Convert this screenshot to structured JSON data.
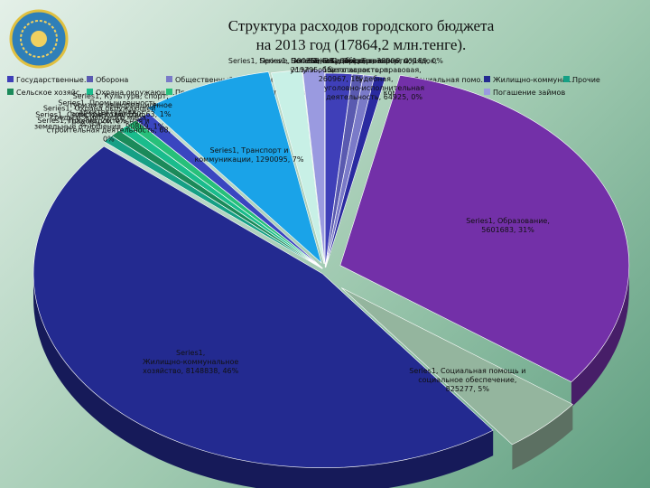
{
  "title_line1": "Структура расходов городского бюджета",
  "title_line2": "на 2013 год (17864,2 млн.тенге).",
  "chart_data": {
    "type": "pie",
    "title": "Структура расходов городского бюджета на 2013 год (17864,2 млн.тенге).",
    "legend": "top",
    "slices": [
      {
        "label": "Series1, Государственные услуги общего характера, 260967, 1%",
        "category": "Государственные услуги общего характера",
        "value": 260967,
        "percent": 1,
        "color": "#3f3fb8"
      },
      {
        "label": "Series1, Оборона, 38006, 0%",
        "category": "Оборона",
        "value": 38006,
        "percent": 0,
        "color": "#5a5ab0"
      },
      {
        "label": "Series1, Общественный порядок, безопасность, правовая, судебная, уголовно-исполнительная деятельность, 64925, 0%",
        "category": "Общественный порядок, безопасность, правовая, судебная, уголовно-исполнительная деятельность",
        "value": 64925,
        "percent": 0,
        "color": "#7a7ac8"
      },
      {
        "label": "Series1, Трансферты, 189, 0%",
        "category": "Трансферты",
        "value": 189,
        "percent": 0,
        "color": "#2a2aa0"
      },
      {
        "label": "Series1, Образование, 5601683, 31%",
        "category": "Образование",
        "value": 5601683,
        "percent": 31,
        "color": "#7330a8"
      },
      {
        "label": "Series1, Социальная помощь и социальное обеспечение, 825277, 5%",
        "category": "Социальная помощь и социальное обеспечение",
        "value": 825277,
        "percent": 5,
        "color": "#94b59e"
      },
      {
        "label": "Series1, Жилищно-коммунальное хозяйство, 8148838, 46%",
        "category": "Жилищно-коммунальное хозяйство",
        "value": 8148838,
        "percent": 46,
        "color": "#232a90"
      },
      {
        "label": "Series1, Прочие, 26, 0%",
        "category": "Прочие",
        "value": 26,
        "percent": 0,
        "color": "#16a085"
      },
      {
        "label": "Series1, Сельское хозяйство, 2, 0%",
        "category": "Сельское хозяйство",
        "value": 2,
        "percent": 0,
        "color": "#1b8a5a"
      },
      {
        "label": "Series1, Охрана окружающей среды и животного мира, земельные отношения, 90869, 1%",
        "category": "Охрана окружающей среды и животного мира, земельные отношения",
        "value": 90869,
        "percent": 1,
        "color": "#1abc8c"
      },
      {
        "label": "Series1, Промышленность, архитектурная, градостроительная и строительная деятельность, 68, 0%",
        "category": "Промышленность, архитектурная, градостроительная и строительная деятельность",
        "value": 68,
        "percent": 0,
        "color": "#27c07a"
      },
      {
        "label": "Series1, Культура, спорт, туризм и информационное пространство, 160563, 1%",
        "category": "Культура, спорт, туризм и информационное пространство",
        "value": 160563,
        "percent": 1,
        "color": "#3a46c0"
      },
      {
        "label": "Series1, Транспорт и коммуникации, 1290095, 7%",
        "category": "Транспорт и коммуникации",
        "value": 1290095,
        "percent": 7,
        "color": "#1aa3e8"
      },
      {
        "label": "Series1, Прочие, 300355, 2%",
        "category": "Прочие",
        "value": 300355,
        "percent": 2,
        "color": "#c8f0e6"
      },
      {
        "label": "Series1, Погашение займов, 213795, 1%",
        "category": "Погашение займов",
        "value": 213795,
        "percent": 1,
        "color": "#9a9ae0"
      }
    ]
  }
}
